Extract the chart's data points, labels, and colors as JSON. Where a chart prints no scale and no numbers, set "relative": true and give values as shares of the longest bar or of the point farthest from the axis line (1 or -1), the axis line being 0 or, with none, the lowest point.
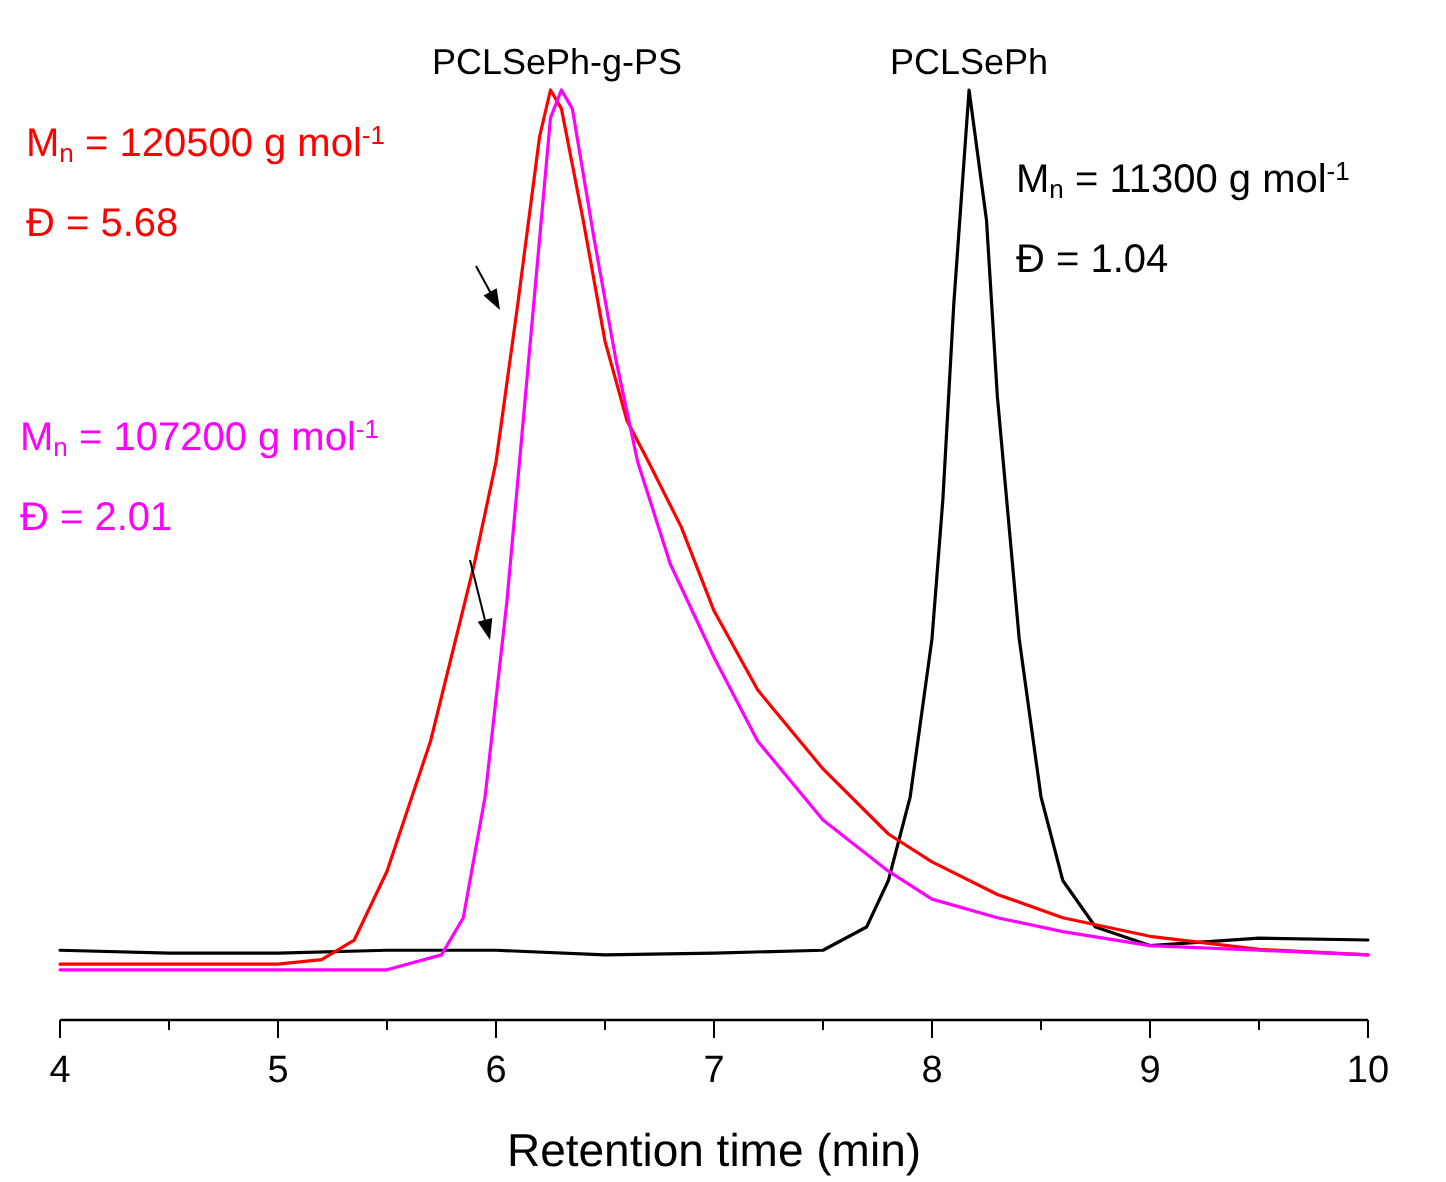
{
  "chart_data": {
    "type": "line",
    "relative": true,
    "xlabel": "Retention time (min)",
    "xlim": [
      4,
      10
    ],
    "xticks": [
      4,
      {
        "value": 4.5,
        "label": null
      },
      5,
      {
        "value": 5.5,
        "label": null
      },
      6,
      {
        "value": 6.5,
        "label": null
      },
      7,
      {
        "value": 7.5,
        "label": null
      },
      8,
      {
        "value": 8.5,
        "label": null
      },
      9,
      {
        "value": 9.5,
        "label": null
      },
      10
    ],
    "grid": false,
    "series": [
      {
        "color": "#000000",
        "x": [
          4,
          4.5,
          5,
          5.5,
          6,
          6.5,
          7,
          7.5,
          7.7,
          7.8,
          7.9,
          8.0,
          8.05,
          8.1,
          8.17,
          8.25,
          8.3,
          8.4,
          8.5,
          8.6,
          8.75,
          9.0,
          9.5,
          10
        ],
        "values": [
          0.075,
          0.072,
          0.072,
          0.075,
          0.075,
          0.07,
          0.072,
          0.075,
          0.1,
          0.15,
          0.24,
          0.41,
          0.56,
          0.77,
          1.0,
          0.86,
          0.67,
          0.41,
          0.24,
          0.15,
          0.1,
          0.08,
          0.088,
          0.086
        ]
      },
      {
        "color": "#ff0000",
        "x": [
          4,
          5,
          5.2,
          5.35,
          5.5,
          5.7,
          5.9,
          6.0,
          6.1,
          6.2,
          6.25,
          6.3,
          6.4,
          6.5,
          6.6,
          6.7,
          6.85,
          7.0,
          7.2,
          7.5,
          7.8,
          8.0,
          8.3,
          8.6,
          9.0,
          9.5,
          10
        ],
        "values": [
          0.06,
          0.06,
          0.065,
          0.086,
          0.16,
          0.3,
          0.49,
          0.6,
          0.77,
          0.95,
          1.0,
          0.98,
          0.86,
          0.73,
          0.645,
          0.6,
          0.53,
          0.44,
          0.355,
          0.27,
          0.2,
          0.17,
          0.135,
          0.11,
          0.09,
          0.076,
          0.07
        ]
      },
      {
        "color": "#ff00ff",
        "x": [
          4,
          5,
          5.5,
          5.75,
          5.85,
          5.95,
          6.05,
          6.15,
          6.25,
          6.3,
          6.35,
          6.45,
          6.55,
          6.65,
          6.8,
          7.0,
          7.2,
          7.5,
          7.8,
          8.0,
          8.3,
          8.6,
          9.0,
          9.5,
          10
        ],
        "values": [
          0.054,
          0.054,
          0.054,
          0.07,
          0.11,
          0.24,
          0.45,
          0.71,
          0.97,
          1.0,
          0.98,
          0.84,
          0.71,
          0.6,
          0.49,
          0.39,
          0.3,
          0.215,
          0.16,
          0.13,
          0.11,
          0.095,
          0.08,
          0.075,
          0.07
        ]
      }
    ],
    "annotations": [
      {
        "text": "PCLSePh-g-PS",
        "x": 6.28,
        "y": 1
      },
      {
        "text": "PCLSePh",
        "x": 8.17,
        "y": 1
      },
      "M$_{n}$ = 120500 g mol$^{-1}$\nĐ = 5.68",
      "M$_{n}$ = 107200 g mol$^{-1}$\nĐ = 2.01",
      "M$_{n}$ = 11300 g mol$^{-1}$\nĐ = 1.04"
    ]
  }
}
